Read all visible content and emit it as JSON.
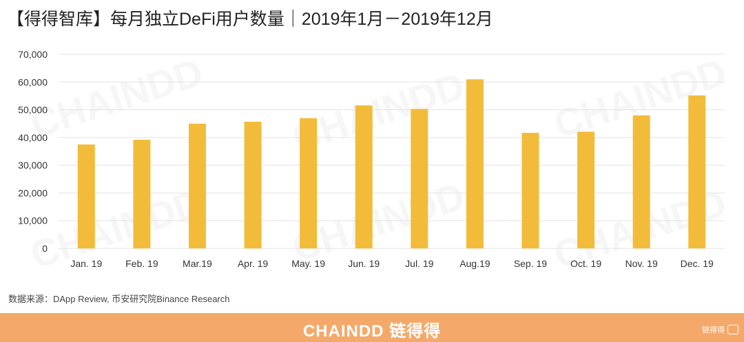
{
  "title": "【得得智库】每月独立DeFi用户数量｜2019年1月－2019年12月",
  "source": "数据来源：DApp Review, 币安研究院Binance Research",
  "footer": {
    "brand": "CHAINDD 链得得",
    "logo_text": "链得得"
  },
  "watermark": {
    "text": "CHAINDD"
  },
  "colors": {
    "bar": "#F2BC3A",
    "grid": "#E3E3E3",
    "footer": "#F4A96A"
  },
  "chart_data": {
    "type": "bar",
    "title": "【得得智库】每月独立DeFi用户数量｜2019年1月－2019年12月",
    "xlabel": "",
    "ylabel": "",
    "ylim": [
      0,
      70000
    ],
    "yticks": [
      0,
      10000,
      20000,
      30000,
      40000,
      50000,
      60000,
      70000
    ],
    "ytick_labels": [
      "0",
      "10,000",
      "20,000",
      "30,000",
      "40,000",
      "50,000",
      "60,000",
      "70,000"
    ],
    "grid": true,
    "legend": "none",
    "categories": [
      "Jan. 19",
      "Feb. 19",
      "Mar.19",
      "Apr. 19",
      "May. 19",
      "Jun. 19",
      "Jul. 19",
      "Aug.19",
      "Sep. 19",
      "Oct. 19",
      "Nov. 19",
      "Dec. 19"
    ],
    "values": [
      37500,
      39200,
      45000,
      45700,
      47000,
      51600,
      50300,
      61000,
      41700,
      42100,
      48000,
      55200
    ]
  }
}
